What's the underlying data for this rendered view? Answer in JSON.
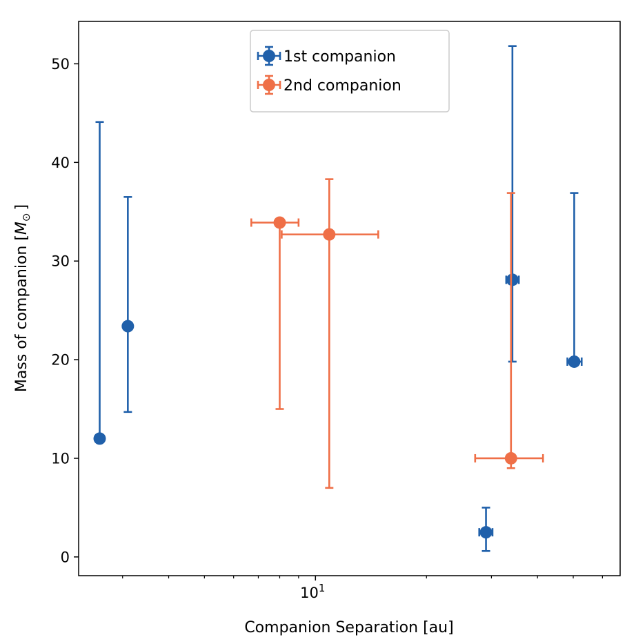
{
  "chart_data": {
    "type": "scatter",
    "xscale": "log",
    "xlabel": "Companion Separation [au]",
    "ylabel": "Mass of companion [",
    "ylabel_symbol": "M",
    "ylabel_sub": "⊙",
    "ylabel_end": "]",
    "xlim": [
      2.28,
      67
    ],
    "ylim": [
      -1.9,
      54.3
    ],
    "x_major_ticks": [
      {
        "value": 10,
        "base": "10",
        "exp": "1"
      }
    ],
    "x_minor_ticks": [
      3,
      4,
      5,
      6,
      7,
      8,
      9,
      20,
      30,
      40,
      50,
      60
    ],
    "y_ticks": [
      0,
      10,
      20,
      30,
      40,
      50
    ],
    "y_tick_labels": [
      "0",
      "10",
      "20",
      "30",
      "40",
      "50"
    ],
    "grid": false,
    "legend_position": "top-center",
    "series": [
      {
        "name": "1st companion",
        "color": "#2060aa",
        "points": [
          {
            "x": 2.6,
            "y": 12.0,
            "xerr": [
              0.05,
              0.05
            ],
            "yerr": [
              0.2,
              32.1
            ]
          },
          {
            "x": 3.1,
            "y": 23.4,
            "xerr": [
              0.0,
              0.0
            ],
            "yerr": [
              8.7,
              13.1
            ]
          },
          {
            "x": 29.0,
            "y": 2.5,
            "xerr": [
              1.2,
              1.2
            ],
            "yerr": [
              1.9,
              2.5
            ]
          },
          {
            "x": 34.2,
            "y": 28.1,
            "xerr": [
              1.3,
              1.4
            ],
            "yerr": [
              8.3,
              23.7
            ]
          },
          {
            "x": 50.3,
            "y": 19.8,
            "xerr": [
              2.1,
              2.4
            ],
            "yerr": [
              0.0,
              17.1
            ]
          }
        ]
      },
      {
        "name": "2nd companion",
        "color": "#ef6f47",
        "points": [
          {
            "x": 8.0,
            "y": 33.9,
            "xerr": [
              1.3,
              1.0
            ],
            "yerr": [
              18.9,
              0.0
            ]
          },
          {
            "x": 10.9,
            "y": 32.7,
            "xerr": [
              2.8,
              3.9
            ],
            "yerr": [
              25.7,
              5.6
            ]
          },
          {
            "x": 33.9,
            "y": 10.0,
            "xerr": [
              6.8,
              7.5
            ],
            "yerr": [
              1.0,
              26.9
            ]
          }
        ]
      }
    ]
  }
}
